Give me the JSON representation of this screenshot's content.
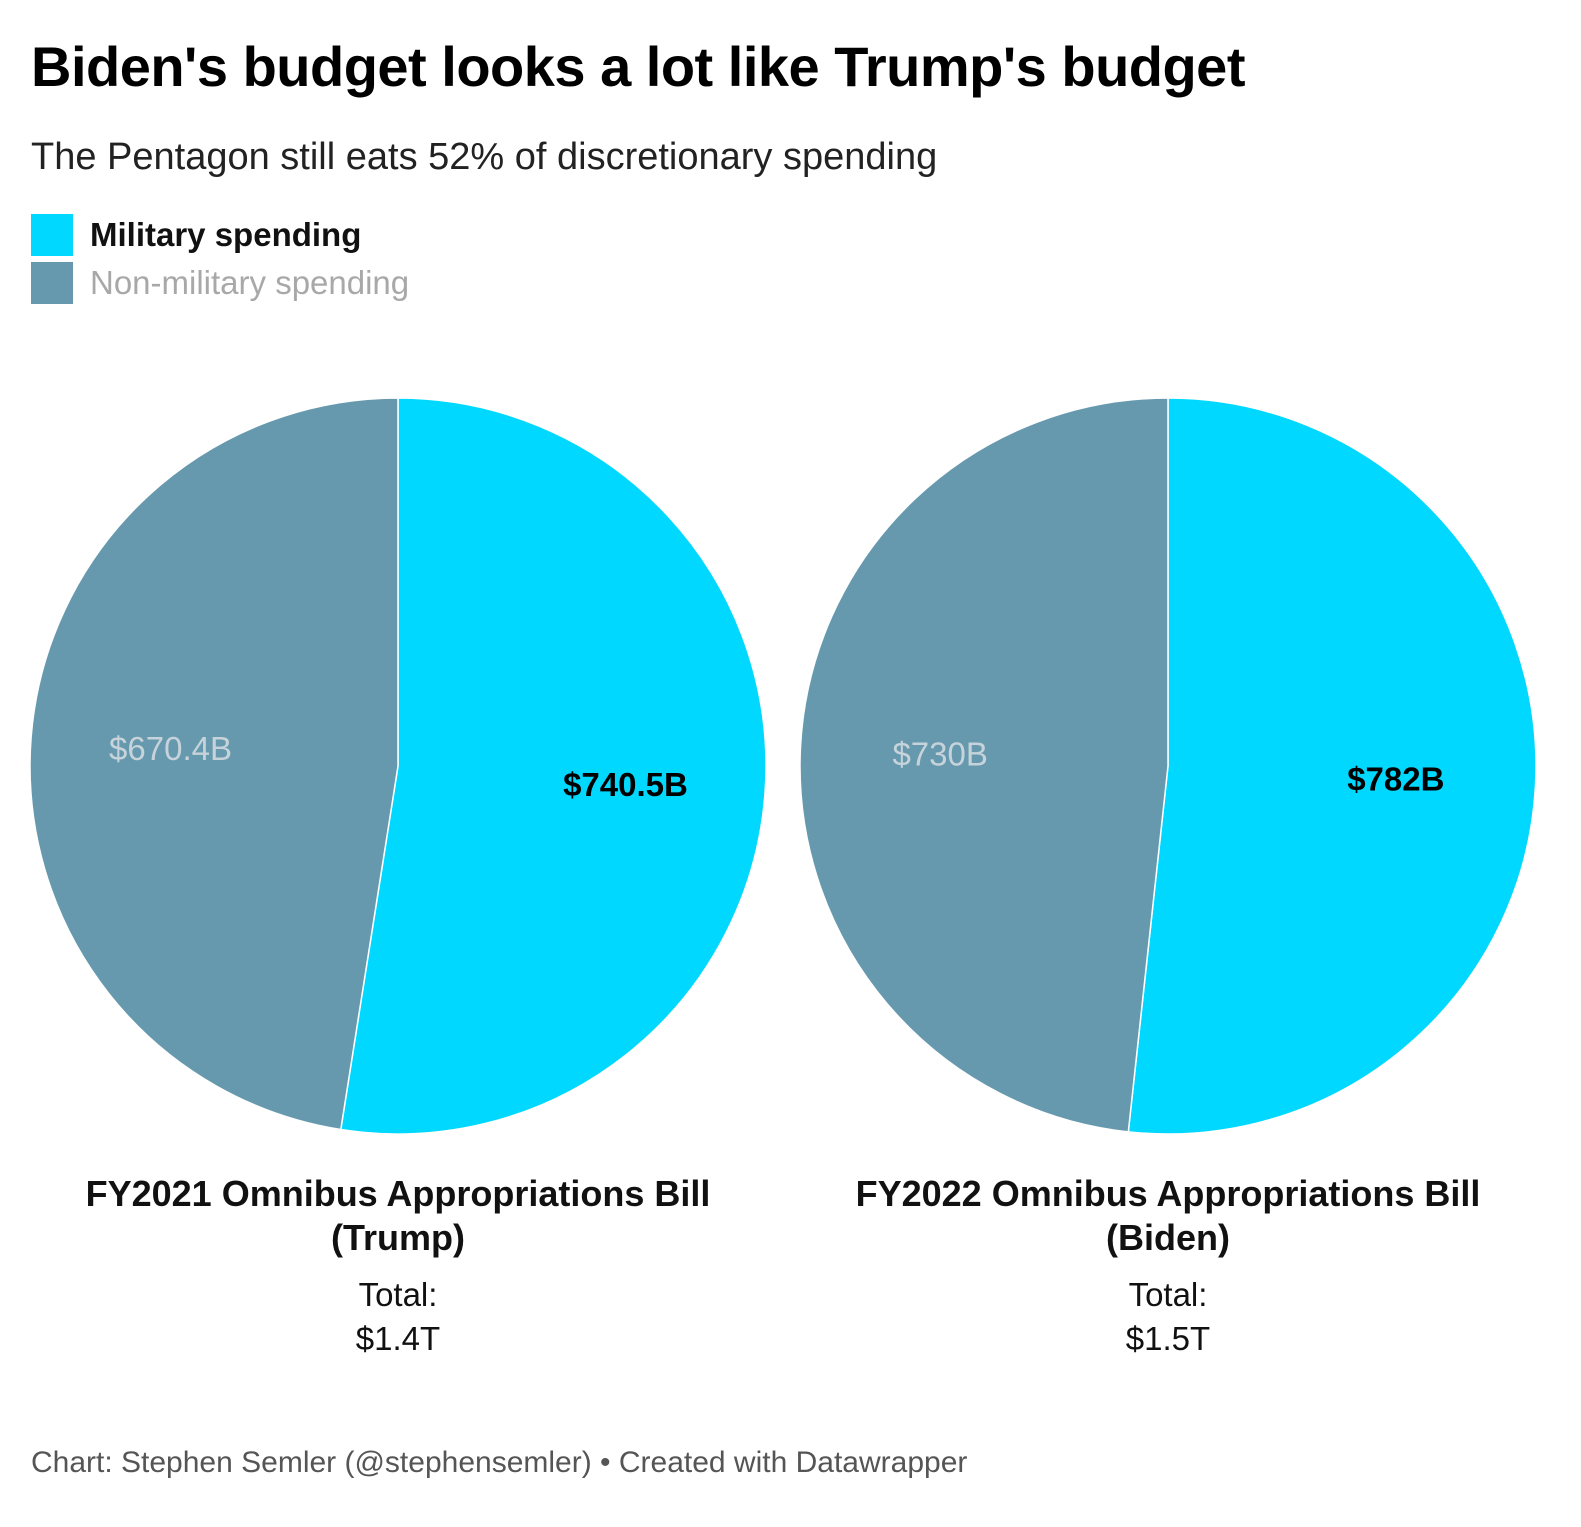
{
  "title": "Biden's budget looks a lot like Trump's budget",
  "subtitle": "The Pentagon still eats 52% of discretionary spending",
  "legend": [
    {
      "label": "Military spending",
      "color": "#00d8ff"
    },
    {
      "label": "Non-military spending",
      "color": "#6699ae"
    }
  ],
  "chart_data": [
    {
      "type": "pie",
      "title_lines": [
        "FY2021 Omnibus Appropriations Bill",
        "(Trump)"
      ],
      "total_lines": [
        "Total:",
        "$1.4T"
      ],
      "slices": [
        {
          "name": "Military spending",
          "value": 740.5,
          "label": "$740.5B",
          "color": "#00d8ff"
        },
        {
          "name": "Non-military spending",
          "value": 670.4,
          "label": "$670.4B",
          "color": "#6699ae"
        }
      ]
    },
    {
      "type": "pie",
      "title_lines": [
        "FY2022 Omnibus Appropriations Bill",
        "(Biden)"
      ],
      "total_lines": [
        "Total:",
        "$1.5T"
      ],
      "slices": [
        {
          "name": "Military spending",
          "value": 782,
          "label": "$782B",
          "color": "#00d8ff"
        },
        {
          "name": "Non-military spending",
          "value": 730,
          "label": "$730B",
          "color": "#6699ae"
        }
      ]
    }
  ],
  "footer": "Chart: Stephen Semler (@stephensemler) • Created with Datawrapper"
}
